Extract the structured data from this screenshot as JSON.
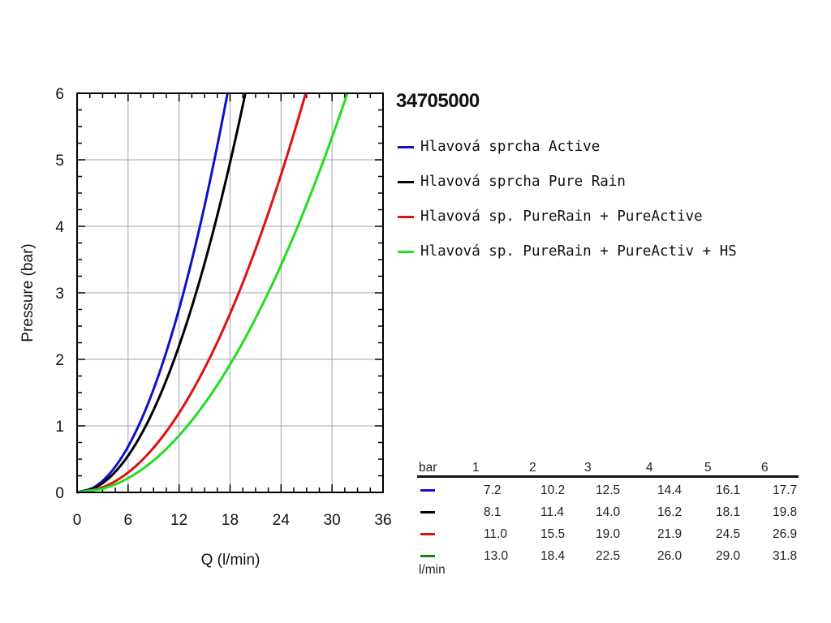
{
  "product_code": "34705000",
  "chart_data": {
    "type": "line",
    "xlabel": "Q (l/min)",
    "ylabel": "Pressure (bar)",
    "xlim": [
      0,
      36
    ],
    "ylim": [
      0,
      6
    ],
    "xticks": [
      0,
      6,
      12,
      18,
      24,
      30,
      36
    ],
    "yticks": [
      0,
      1,
      2,
      3,
      4,
      5,
      6
    ],
    "grid": true,
    "legend_position": "right",
    "series": [
      {
        "name": "Hlavová sprcha Active",
        "color": "#1010cc",
        "x": [
          0,
          7.2,
          10.2,
          12.5,
          14.4,
          16.1,
          17.7
        ],
        "y": [
          0,
          1,
          2,
          3,
          4,
          5,
          6
        ]
      },
      {
        "name": "Hlavová sprcha Pure Rain",
        "color": "#000000",
        "x": [
          0,
          8.1,
          11.4,
          14.0,
          16.2,
          18.1,
          19.8
        ],
        "y": [
          0,
          1,
          2,
          3,
          4,
          5,
          6
        ]
      },
      {
        "name": "Hlavová sp. PureRain + PureActive",
        "color": "#e01010",
        "x": [
          0,
          11.0,
          15.5,
          19.0,
          21.9,
          24.5,
          26.9
        ],
        "y": [
          0,
          1,
          2,
          3,
          4,
          5,
          6
        ]
      },
      {
        "name": "Hlavová sp. PureRain + PureActiv + HS",
        "color": "#22dd22",
        "x": [
          0,
          13.0,
          18.4,
          22.5,
          26.0,
          29.0,
          31.8
        ],
        "y": [
          0,
          1,
          2,
          3,
          4,
          5,
          6
        ]
      }
    ]
  },
  "table": {
    "header_label": "bar",
    "unit_label": "l/min",
    "columns": [
      "1",
      "2",
      "3",
      "4",
      "5",
      "6"
    ],
    "rows": [
      {
        "color": "#1010cc",
        "values": [
          "7.2",
          "10.2",
          "12.5",
          "14.4",
          "16.1",
          "17.7"
        ]
      },
      {
        "color": "#000000",
        "values": [
          "8.1",
          "11.4",
          "14.0",
          "16.2",
          "18.1",
          "19.8"
        ]
      },
      {
        "color": "#e01010",
        "values": [
          "11.0",
          "15.5",
          "19.0",
          "21.9",
          "24.5",
          "26.9"
        ]
      },
      {
        "color": "#108010",
        "values": [
          "13.0",
          "18.4",
          "22.5",
          "26.0",
          "29.0",
          "31.8"
        ]
      }
    ]
  }
}
